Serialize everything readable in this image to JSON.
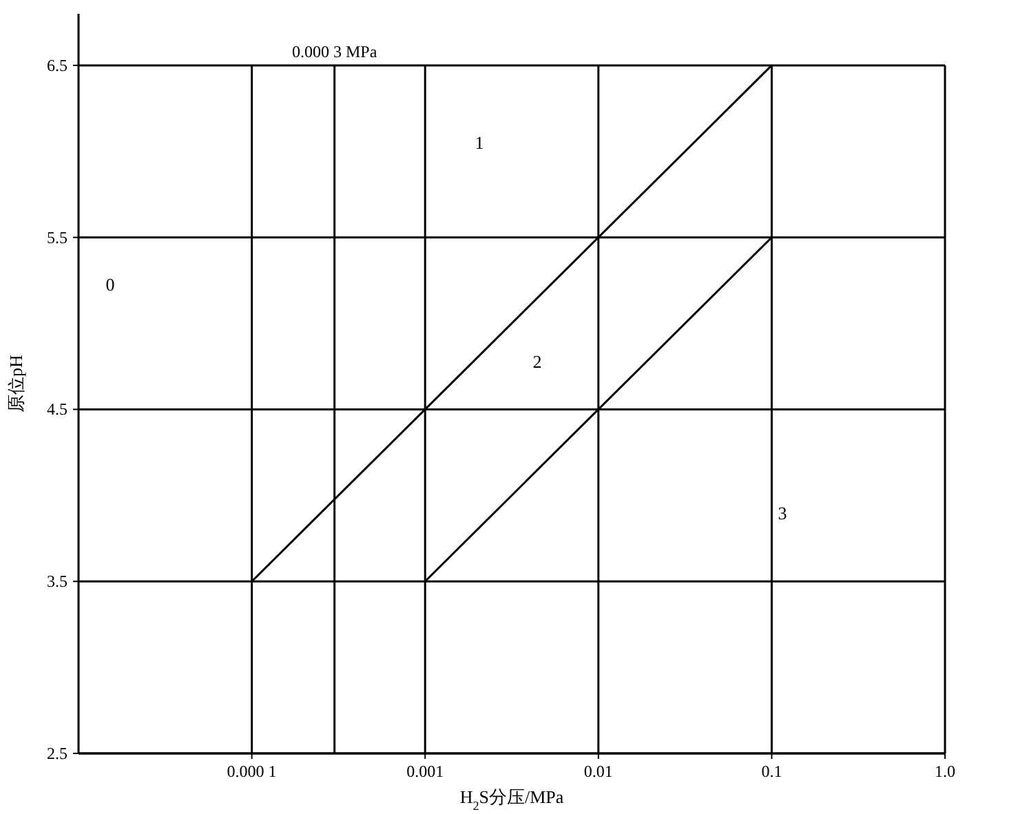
{
  "chart_data": {
    "type": "line",
    "xlabel": "H$_{2}$S分压/MPa",
    "ylabel": "原位pH",
    "log": "x",
    "xlim": [
      1e-05,
      1.0
    ],
    "ylim": [
      2.5,
      6.8
    ],
    "xticks": [
      {
        "value": 0.0001,
        "label": "0.000 1"
      },
      0.001,
      0.01,
      0.1,
      {
        "value": 1.0,
        "label": "1.0"
      }
    ],
    "yticks": [
      2.5,
      3.5,
      4.5,
      5.5,
      6.5
    ],
    "grid": true,
    "series": [
      {
        "color": "#000000",
        "x": [
          0.0001,
          0.1
        ],
        "values": [
          3.5,
          6.5
        ]
      },
      {
        "color": "#000000",
        "x": [
          0.001,
          0.1
        ],
        "values": [
          3.5,
          5.5
        ]
      }
    ],
    "ref_lines": [
      {
        "axis": "x",
        "value": 0.0003,
        "label": "0.000 3 MPa",
        "color": "#000000"
      }
    ],
    "annotations": [
      "0",
      "1",
      "2",
      "3"
    ]
  }
}
